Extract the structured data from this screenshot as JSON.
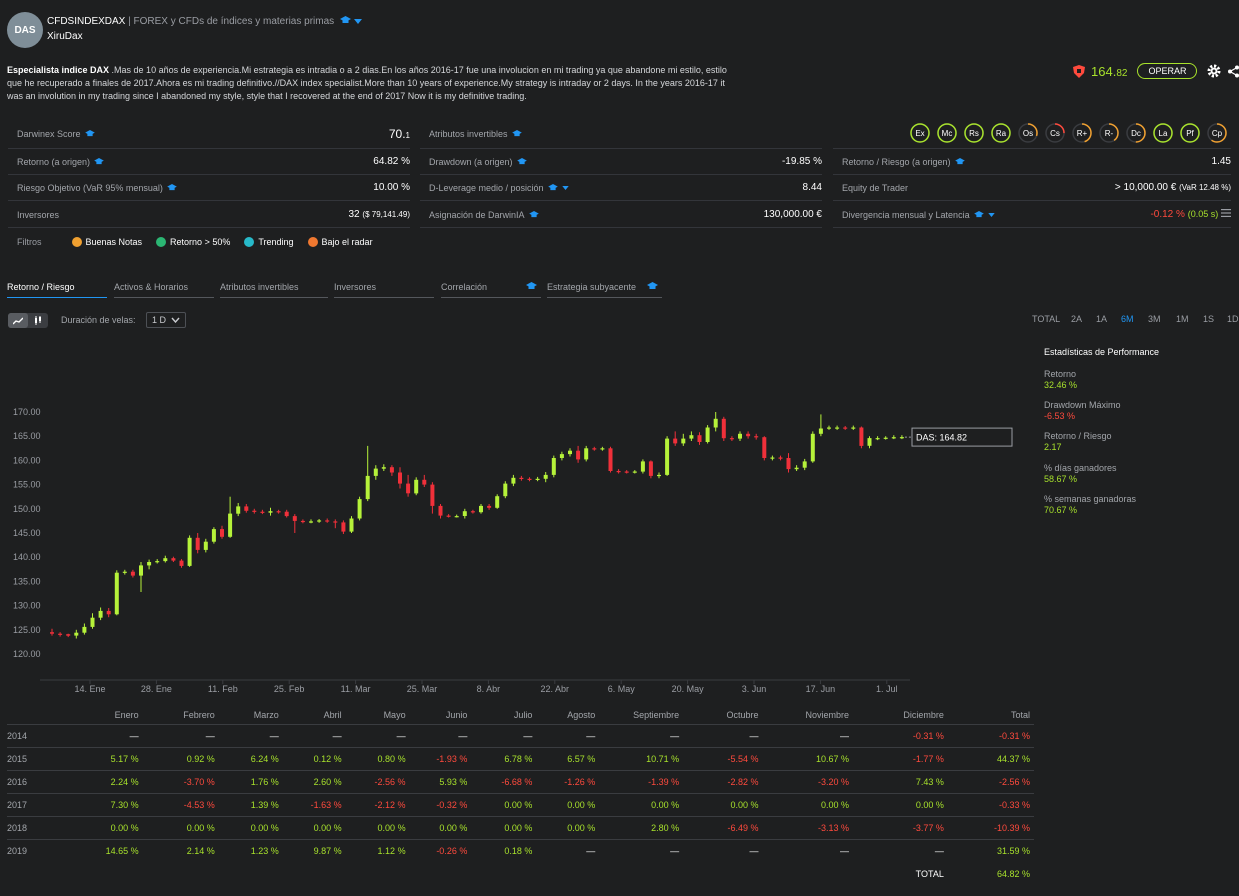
{
  "header": {
    "avatar": "DAS",
    "name": "CFDSINDEXDAX",
    "separator": "|",
    "subtitle": "FOREX y CFDs de índices y materias primas",
    "user": "XiruDax",
    "description_bold": "Especialista indice DAX",
    "description": " .Mas de 10 años de experiencia.Mi estrategia es intradia o a 2 dias.En los años 2016-17 fue una involucion en mi trading ya que abandone mi estilo, estilo que he recuperado a finales de 2017.Ahora es mi trading definitivo.//DAX index specialist.More than 10 years of experience.My strategy is intraday or 2 days. In the years 2016-17 it was an involution in my trading since I abandoned my style, style that I recovered at the end of 2017 Now it is my definitive trading.",
    "price_int": "164.",
    "price_dec": "82",
    "operate_label": "OPERAR"
  },
  "metrics": {
    "darwinex_score_label": "Darwinex Score",
    "darwinex_score_int": "70.",
    "darwinex_score_dec": "1",
    "attributes_label": "Atributos invertibles",
    "attributes": [
      "Ex",
      "Mc",
      "Rs",
      "Ra",
      "Os",
      "Cs",
      "R+",
      "R-",
      "Dc",
      "La",
      "Pf",
      "Cp"
    ],
    "return_label": "Retorno (a origen)",
    "return_val": "64.82 %",
    "drawdown_label": "Drawdown (a origen)",
    "drawdown_val": "-19.85 %",
    "ret_risk_label": "Retorno / Riesgo (a origen)",
    "ret_risk_val": "1.45",
    "risk_label": "Riesgo Objetivo (VaR 95% mensual)",
    "risk_val": "10.00 %",
    "dleverage_label": "D-Leverage medio / posición",
    "dleverage_val": "8.44",
    "equity_label": "Equity de Trader",
    "equity_val": "> 10,000.00 €",
    "equity_var": "(VaR 12.48 %)",
    "investors_label": "Inversores",
    "investors_val": "32",
    "investors_amount": "($ 79,141.49)",
    "allocation_label": "Asignación de DarwinIA",
    "allocation_val": "130,000.00 €",
    "divergence_label": "Divergencia mensual y Latencia",
    "divergence_val": "-0.12 %",
    "latency_val": "(0.05 s)"
  },
  "filters": {
    "label": "Filtros",
    "items": [
      {
        "label": "Buenas Notas",
        "color": "#f0a030"
      },
      {
        "label": "Retorno > 50%",
        "color": "#2bb673"
      },
      {
        "label": "Trending",
        "color": "#27b9c9"
      },
      {
        "label": "Bajo el radar",
        "color": "#f07830"
      }
    ]
  },
  "tabs": [
    "Retorno / Riesgo",
    "Activos & Horarios",
    "Atributos invertibles",
    "Inversores",
    "Correlación",
    "Estrategia subyacente"
  ],
  "chart_controls": {
    "duration_label": "Duración de velas:",
    "duration_value": "1 D",
    "ranges": [
      "TOTAL",
      "2A",
      "1A",
      "6M",
      "3M",
      "1M",
      "1S",
      "1D"
    ],
    "active_range": "6M"
  },
  "stats": {
    "title": "Estadísticas de Performance",
    "items": [
      {
        "label": "Retorno",
        "value": "32.46 %",
        "color": "#a8e22c"
      },
      {
        "label": "Drawdown Máximo",
        "value": "-6.53 %",
        "color": "#ff4a3d"
      },
      {
        "label": "Retorno / Riesgo",
        "value": "2.17",
        "color": "#a8e22c"
      },
      {
        "label": "% días ganadores",
        "value": "58.67 %",
        "color": "#a8e22c"
      },
      {
        "label": "% semanas ganadoras",
        "value": "70.67 %",
        "color": "#a8e22c"
      }
    ]
  },
  "chart_data": {
    "type": "candlestick",
    "y_ticks": [
      "170.00",
      "165.00",
      "160.00",
      "155.00",
      "150.00",
      "145.00",
      "140.00",
      "135.00",
      "130.00",
      "125.00",
      "120.00"
    ],
    "ylim": [
      118,
      172
    ],
    "x_ticks": [
      "14. Ene",
      "28. Ene",
      "11. Feb",
      "25. Feb",
      "11. Mar",
      "25. Mar",
      "8. Abr",
      "22. Abr",
      "6. May",
      "20. May",
      "3. Jun",
      "17. Jun",
      "1. Jul"
    ],
    "last_label": "DAS: 164.82",
    "up_color": "#b6f23a",
    "down_color": "#f0303a",
    "candles": [
      {
        "o": 124.5,
        "c": 124.2,
        "h": 125.2,
        "l": 123.8
      },
      {
        "o": 124.2,
        "c": 124.1,
        "h": 124.5,
        "l": 123.6
      },
      {
        "o": 124.1,
        "c": 123.8,
        "h": 124.2,
        "l": 123.5
      },
      {
        "o": 123.8,
        "c": 124.4,
        "h": 125.0,
        "l": 123.2
      },
      {
        "o": 124.4,
        "c": 125.6,
        "h": 126.3,
        "l": 124.0
      },
      {
        "o": 125.6,
        "c": 127.5,
        "h": 128.4,
        "l": 125.2
      },
      {
        "o": 127.5,
        "c": 128.9,
        "h": 129.6,
        "l": 127.0
      },
      {
        "o": 128.9,
        "c": 128.2,
        "h": 129.5,
        "l": 127.6
      },
      {
        "o": 128.2,
        "c": 136.8,
        "h": 137.3,
        "l": 128.0
      },
      {
        "o": 136.8,
        "c": 137.0,
        "h": 137.4,
        "l": 136.4
      },
      {
        "o": 137.0,
        "c": 136.2,
        "h": 137.4,
        "l": 135.8
      },
      {
        "o": 136.2,
        "c": 138.3,
        "h": 139.0,
        "l": 132.8
      },
      {
        "o": 138.3,
        "c": 139.0,
        "h": 139.5,
        "l": 137.5
      },
      {
        "o": 139.0,
        "c": 139.2,
        "h": 139.6,
        "l": 138.7
      },
      {
        "o": 139.2,
        "c": 139.8,
        "h": 140.3,
        "l": 138.9
      },
      {
        "o": 139.8,
        "c": 139.3,
        "h": 140.1,
        "l": 139.0
      },
      {
        "o": 139.3,
        "c": 138.2,
        "h": 139.6,
        "l": 137.8
      },
      {
        "o": 138.2,
        "c": 144.0,
        "h": 144.5,
        "l": 138.0
      },
      {
        "o": 144.0,
        "c": 141.5,
        "h": 145.0,
        "l": 140.8
      },
      {
        "o": 141.5,
        "c": 143.2,
        "h": 143.8,
        "l": 141.0
      },
      {
        "o": 143.2,
        "c": 145.8,
        "h": 146.2,
        "l": 142.8
      },
      {
        "o": 145.8,
        "c": 144.2,
        "h": 146.5,
        "l": 143.8
      },
      {
        "o": 144.2,
        "c": 149.0,
        "h": 152.5,
        "l": 144.0
      },
      {
        "o": 149.0,
        "c": 150.5,
        "h": 151.2,
        "l": 148.5
      },
      {
        "o": 150.5,
        "c": 149.6,
        "h": 151.0,
        "l": 149.2
      },
      {
        "o": 149.6,
        "c": 149.4,
        "h": 150.0,
        "l": 149.0
      },
      {
        "o": 149.4,
        "c": 149.2,
        "h": 149.8,
        "l": 148.9
      },
      {
        "o": 149.2,
        "c": 149.5,
        "h": 150.2,
        "l": 148.6
      },
      {
        "o": 149.5,
        "c": 149.4,
        "h": 149.8,
        "l": 149.0
      },
      {
        "o": 149.4,
        "c": 148.5,
        "h": 149.8,
        "l": 148.2
      },
      {
        "o": 148.5,
        "c": 147.5,
        "h": 148.9,
        "l": 145.0
      },
      {
        "o": 147.5,
        "c": 147.3,
        "h": 147.8,
        "l": 147.0
      },
      {
        "o": 147.3,
        "c": 147.4,
        "h": 147.8,
        "l": 147.0
      },
      {
        "o": 147.4,
        "c": 147.6,
        "h": 147.9,
        "l": 147.1
      },
      {
        "o": 147.6,
        "c": 147.4,
        "h": 148.0,
        "l": 147.1
      },
      {
        "o": 147.4,
        "c": 147.2,
        "h": 147.8,
        "l": 146.0
      },
      {
        "o": 147.2,
        "c": 145.3,
        "h": 147.6,
        "l": 144.8
      },
      {
        "o": 145.3,
        "c": 148.0,
        "h": 148.5,
        "l": 145.0
      },
      {
        "o": 148.0,
        "c": 152.0,
        "h": 152.5,
        "l": 147.6
      },
      {
        "o": 152.0,
        "c": 156.8,
        "h": 163.0,
        "l": 151.6
      },
      {
        "o": 156.8,
        "c": 158.3,
        "h": 159.0,
        "l": 156.0
      },
      {
        "o": 158.3,
        "c": 158.6,
        "h": 159.2,
        "l": 157.8
      },
      {
        "o": 158.6,
        "c": 157.5,
        "h": 159.0,
        "l": 156.8
      },
      {
        "o": 157.5,
        "c": 155.2,
        "h": 158.6,
        "l": 154.2
      },
      {
        "o": 155.2,
        "c": 153.2,
        "h": 157.0,
        "l": 152.5
      },
      {
        "o": 153.2,
        "c": 156.0,
        "h": 156.5,
        "l": 152.8
      },
      {
        "o": 156.0,
        "c": 155.0,
        "h": 157.0,
        "l": 154.5
      },
      {
        "o": 155.0,
        "c": 150.6,
        "h": 155.5,
        "l": 149.0
      },
      {
        "o": 150.6,
        "c": 148.6,
        "h": 151.0,
        "l": 148.0
      },
      {
        "o": 148.6,
        "c": 148.5,
        "h": 148.9,
        "l": 148.2
      },
      {
        "o": 148.5,
        "c": 148.5,
        "h": 148.8,
        "l": 148.2
      },
      {
        "o": 148.5,
        "c": 149.5,
        "h": 150.0,
        "l": 148.0
      },
      {
        "o": 149.5,
        "c": 149.3,
        "h": 149.8,
        "l": 149.0
      },
      {
        "o": 149.3,
        "c": 150.6,
        "h": 151.0,
        "l": 149.0
      },
      {
        "o": 150.6,
        "c": 150.2,
        "h": 151.0,
        "l": 149.8
      },
      {
        "o": 150.2,
        "c": 152.6,
        "h": 153.0,
        "l": 150.0
      },
      {
        "o": 152.6,
        "c": 155.2,
        "h": 155.7,
        "l": 152.2
      },
      {
        "o": 155.2,
        "c": 156.4,
        "h": 157.0,
        "l": 154.7
      },
      {
        "o": 156.4,
        "c": 156.2,
        "h": 156.8,
        "l": 155.8
      },
      {
        "o": 156.2,
        "c": 156.0,
        "h": 156.5,
        "l": 155.7
      },
      {
        "o": 156.0,
        "c": 156.2,
        "h": 156.6,
        "l": 155.7
      },
      {
        "o": 156.2,
        "c": 157.0,
        "h": 157.6,
        "l": 155.5
      },
      {
        "o": 157.0,
        "c": 160.5,
        "h": 161.0,
        "l": 156.5
      },
      {
        "o": 160.5,
        "c": 161.3,
        "h": 161.8,
        "l": 160.0
      },
      {
        "o": 161.3,
        "c": 162.0,
        "h": 162.5,
        "l": 160.8
      },
      {
        "o": 162.0,
        "c": 160.2,
        "h": 163.0,
        "l": 159.5
      },
      {
        "o": 160.2,
        "c": 162.5,
        "h": 163.0,
        "l": 159.8
      },
      {
        "o": 162.5,
        "c": 162.4,
        "h": 162.8,
        "l": 162.0
      },
      {
        "o": 162.4,
        "c": 162.5,
        "h": 162.8,
        "l": 162.0
      },
      {
        "o": 162.5,
        "c": 157.8,
        "h": 162.8,
        "l": 157.5
      },
      {
        "o": 157.8,
        "c": 157.7,
        "h": 158.2,
        "l": 157.3
      },
      {
        "o": 157.7,
        "c": 157.6,
        "h": 158.0,
        "l": 157.3
      },
      {
        "o": 157.6,
        "c": 157.7,
        "h": 158.0,
        "l": 157.3
      },
      {
        "o": 157.7,
        "c": 159.8,
        "h": 160.2,
        "l": 157.3
      },
      {
        "o": 159.8,
        "c": 156.8,
        "h": 160.0,
        "l": 156.3
      },
      {
        "o": 156.8,
        "c": 157.0,
        "h": 157.5,
        "l": 156.3
      },
      {
        "o": 157.0,
        "c": 164.5,
        "h": 165.0,
        "l": 156.8
      },
      {
        "o": 164.5,
        "c": 163.5,
        "h": 166.0,
        "l": 163.0
      },
      {
        "o": 163.5,
        "c": 164.5,
        "h": 165.5,
        "l": 163.0
      },
      {
        "o": 164.5,
        "c": 165.2,
        "h": 166.0,
        "l": 164.0
      },
      {
        "o": 165.2,
        "c": 163.8,
        "h": 165.8,
        "l": 163.2
      },
      {
        "o": 163.8,
        "c": 166.8,
        "h": 167.3,
        "l": 163.5
      },
      {
        "o": 166.8,
        "c": 168.6,
        "h": 170.0,
        "l": 166.0
      },
      {
        "o": 168.6,
        "c": 164.6,
        "h": 169.0,
        "l": 164.0
      },
      {
        "o": 164.6,
        "c": 164.5,
        "h": 165.0,
        "l": 164.0
      },
      {
        "o": 164.5,
        "c": 165.5,
        "h": 166.0,
        "l": 164.0
      },
      {
        "o": 165.5,
        "c": 165.0,
        "h": 166.0,
        "l": 164.5
      },
      {
        "o": 165.0,
        "c": 164.8,
        "h": 165.5,
        "l": 164.3
      },
      {
        "o": 164.8,
        "c": 160.5,
        "h": 165.0,
        "l": 160.0
      },
      {
        "o": 160.5,
        "c": 160.6,
        "h": 161.0,
        "l": 160.0
      },
      {
        "o": 160.6,
        "c": 160.5,
        "h": 161.0,
        "l": 160.0
      },
      {
        "o": 160.5,
        "c": 158.2,
        "h": 161.5,
        "l": 157.5
      },
      {
        "o": 158.2,
        "c": 158.5,
        "h": 159.0,
        "l": 157.8
      },
      {
        "o": 158.5,
        "c": 159.8,
        "h": 160.3,
        "l": 158.0
      },
      {
        "o": 159.8,
        "c": 165.5,
        "h": 166.0,
        "l": 159.5
      },
      {
        "o": 165.5,
        "c": 166.6,
        "h": 169.5,
        "l": 165.0
      },
      {
        "o": 166.6,
        "c": 166.8,
        "h": 167.2,
        "l": 166.3
      },
      {
        "o": 166.8,
        "c": 166.8,
        "h": 167.2,
        "l": 166.3
      },
      {
        "o": 166.8,
        "c": 166.7,
        "h": 167.1,
        "l": 166.3
      },
      {
        "o": 166.7,
        "c": 166.8,
        "h": 167.2,
        "l": 166.3
      },
      {
        "o": 166.8,
        "c": 163.0,
        "h": 167.0,
        "l": 162.5
      },
      {
        "o": 163.0,
        "c": 164.6,
        "h": 165.0,
        "l": 162.5
      },
      {
        "o": 164.6,
        "c": 164.6,
        "h": 165.0,
        "l": 164.2
      },
      {
        "o": 164.6,
        "c": 164.7,
        "h": 165.0,
        "l": 164.3
      },
      {
        "o": 164.7,
        "c": 164.8,
        "h": 165.2,
        "l": 164.4
      },
      {
        "o": 164.8,
        "c": 164.82,
        "h": 165.2,
        "l": 164.4
      }
    ]
  },
  "monthly_table": {
    "headers": [
      "",
      "Enero",
      "Febrero",
      "Marzo",
      "Abril",
      "Mayo",
      "Junio",
      "Julio",
      "Agosto",
      "Septiembre",
      "Octubre",
      "Noviembre",
      "Diciembre",
      "Total"
    ],
    "rows": [
      [
        "2014",
        "—",
        "—",
        "—",
        "—",
        "—",
        "—",
        "—",
        "—",
        "—",
        "—",
        "—",
        "-0.31 %",
        "-0.31 %"
      ],
      [
        "2015",
        "5.17 %",
        "0.92 %",
        "6.24 %",
        "0.12 %",
        "0.80 %",
        "-1.93 %",
        "6.78 %",
        "6.57 %",
        "10.71 %",
        "-5.54 %",
        "10.67 %",
        "-1.77 %",
        "44.37 %"
      ],
      [
        "2016",
        "2.24 %",
        "-3.70 %",
        "1.76 %",
        "2.60 %",
        "-2.56 %",
        "5.93 %",
        "-6.68 %",
        "-1.26 %",
        "-1.39 %",
        "-2.82 %",
        "-3.20 %",
        "7.43 %",
        "-2.56 %"
      ],
      [
        "2017",
        "7.30 %",
        "-4.53 %",
        "1.39 %",
        "-1.63 %",
        "-2.12 %",
        "-0.32 %",
        "0.00 %",
        "0.00 %",
        "0.00 %",
        "0.00 %",
        "0.00 %",
        "0.00 %",
        "-0.33 %"
      ],
      [
        "2018",
        "0.00 %",
        "0.00 %",
        "0.00 %",
        "0.00 %",
        "0.00 %",
        "0.00 %",
        "0.00 %",
        "0.00 %",
        "2.80 %",
        "-6.49 %",
        "-3.13 %",
        "-3.77 %",
        "-10.39 %"
      ],
      [
        "2019",
        "14.65 %",
        "2.14 %",
        "1.23 %",
        "9.87 %",
        "1.12 %",
        "-0.26 %",
        "0.18 %",
        "—",
        "—",
        "—",
        "—",
        "—",
        "31.59 %"
      ]
    ],
    "total_label": "TOTAL",
    "total_value": "64.82 %"
  }
}
